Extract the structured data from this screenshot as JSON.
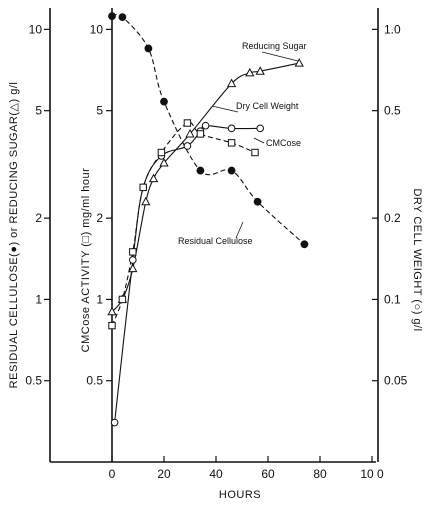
{
  "chart_data": {
    "type": "scatter",
    "xlabel": "HOURS",
    "xlim": [
      0,
      100
    ],
    "x_ticks": [
      0,
      20,
      40,
      60,
      80,
      100
    ],
    "x_tick_labels": [
      "0",
      "20",
      "40",
      "60",
      "80",
      "10 0"
    ],
    "axes": {
      "left_outer": {
        "label": "RESIDUAL CELLULOSE(●) or REDUCING SUGAR(△) g/l",
        "scale": "log",
        "range": [
          0.25,
          12
        ],
        "ticks": [
          10,
          5,
          2,
          1,
          0.5
        ],
        "tick_labels": [
          "10",
          "5",
          "2",
          "1",
          "0.5"
        ]
      },
      "left_inner": {
        "label": "CMCose ACTIVITY (□) mg/ml hour",
        "scale": "log",
        "range": [
          0.25,
          12
        ],
        "ticks": [
          10,
          5,
          2,
          1,
          0.5
        ],
        "tick_labels": [
          "10",
          "5",
          "2",
          "1",
          "0.5"
        ]
      },
      "right": {
        "label": "DRY CELL WEIGHT (○) g/l",
        "scale": "log",
        "range": [
          0.025,
          1.2
        ],
        "ticks": [
          1.0,
          0.5,
          0.2,
          0.1,
          0.05
        ],
        "tick_labels": [
          "1.0",
          "0.5",
          "0.2",
          "0.1",
          "0.05"
        ]
      }
    },
    "series": [
      {
        "name": "Residual Cellulose",
        "marker": "filled-circle",
        "line": "dashed",
        "axis": "left_outer",
        "x": [
          0,
          4,
          14,
          20,
          34,
          46,
          56,
          74
        ],
        "y": [
          11.2,
          11.1,
          8.5,
          5.4,
          3.0,
          3.0,
          2.3,
          1.6
        ]
      },
      {
        "name": "Reducing Sugar",
        "marker": "triangle",
        "line": "solid",
        "axis": "left_outer",
        "x": [
          0,
          4,
          8,
          13,
          16,
          20,
          30,
          46,
          53,
          57,
          72
        ],
        "y": [
          0.9,
          1.0,
          1.3,
          2.3,
          2.8,
          3.2,
          4.1,
          6.3,
          6.9,
          7.0,
          7.5
        ]
      },
      {
        "name": "Dry Cell Weight",
        "marker": "open-circle",
        "line": "solid",
        "axis": "right",
        "x": [
          1,
          8,
          12,
          19,
          29,
          34,
          36,
          46,
          57
        ],
        "y": [
          0.035,
          0.14,
          0.26,
          0.34,
          0.37,
          0.42,
          0.44,
          0.43,
          0.43
        ]
      },
      {
        "name": "CMCose",
        "marker": "open-square",
        "line": "dashed",
        "axis": "left_inner",
        "x": [
          0,
          4,
          8,
          12,
          19,
          29,
          34,
          46,
          55
        ],
        "y": [
          0.8,
          1.0,
          1.5,
          2.6,
          3.5,
          4.5,
          4.1,
          3.8,
          3.5
        ]
      }
    ],
    "annotations": [
      "Reducing Sugar",
      "Dry Cell Weight",
      "CMCose",
      "Residual Cellulose"
    ]
  }
}
